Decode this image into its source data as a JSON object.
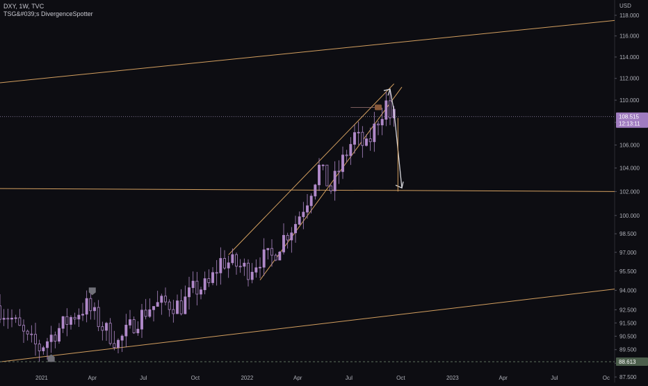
{
  "header": {
    "symbol_line": "DXY, 1W, TVC",
    "indicator_line": "TSG&#039;s DivergenceSpotter"
  },
  "price_axis": {
    "currency": "USD",
    "current_price": "108.515",
    "countdown": "12:13:11",
    "marker_price": "88.613"
  },
  "colors": {
    "background": "#0d0d12",
    "candle": "#b089c9",
    "trendline": "#d4a060",
    "arrow": "#d8d8de",
    "current_tag": "#a07cc0",
    "marker_tag": "#4c5e4c",
    "bull_marker": "#8a5a3a",
    "divergence_marker": "#707078"
  },
  "chart_data": {
    "type": "candlestick",
    "title": "DXY, 1W, TVC",
    "ylabel": "USD",
    "y_scale": "log",
    "ylim": [
      87.1,
      119.5
    ],
    "y_ticks": [
      "118.000",
      "116.000",
      "114.000",
      "112.000",
      "110.000",
      "108.000",
      "106.000",
      "104.000",
      "102.000",
      "100.000",
      "98.500",
      "97.000",
      "95.500",
      "94.000",
      "92.500",
      "91.500",
      "90.500",
      "89.500",
      "88.500",
      "87.500"
    ],
    "x_ticks": [
      "2021",
      "Apr",
      "Jul",
      "Oct",
      "2022",
      "Apr",
      "Jul",
      "Oct",
      "2023",
      "Apr",
      "Jul",
      "Oc"
    ],
    "x_tick_dates": [
      "2021-01-01",
      "2021-04-01",
      "2021-07-01",
      "2021-10-01",
      "2022-01-01",
      "2022-04-01",
      "2022-07-01",
      "2022-10-01",
      "2023-01-01",
      "2023-04-01",
      "2023-07-01",
      "2023-10-01"
    ],
    "xlim": [
      "2020-10-19",
      "2023-10-16"
    ],
    "current_price": 108.515,
    "price_line_marker": 88.613,
    "price_path": [
      [
        "2020-10-19",
        92.8
      ],
      [
        "2020-11-16",
        91.8
      ],
      [
        "2020-12-14",
        90.2
      ],
      [
        "2021-01-04",
        89.6
      ],
      [
        "2021-02-01",
        90.8
      ],
      [
        "2021-03-01",
        91.9
      ],
      [
        "2021-03-29",
        92.8
      ],
      [
        "2021-04-26",
        91.2
      ],
      [
        "2021-05-24",
        90.0
      ],
      [
        "2021-06-21",
        91.5
      ],
      [
        "2021-07-19",
        92.7
      ],
      [
        "2021-08-16",
        93.0
      ],
      [
        "2021-09-13",
        92.8
      ],
      [
        "2021-10-04",
        94.0
      ],
      [
        "2021-11-01",
        94.4
      ],
      [
        "2021-11-22",
        96.3
      ],
      [
        "2021-12-13",
        96.1
      ],
      [
        "2022-01-10",
        95.6
      ],
      [
        "2022-01-31",
        96.5
      ],
      [
        "2022-02-21",
        96.6
      ],
      [
        "2022-03-14",
        98.2
      ],
      [
        "2022-04-04",
        99.4
      ],
      [
        "2022-04-25",
        101.4
      ],
      [
        "2022-05-16",
        104.0
      ],
      [
        "2022-06-06",
        102.2
      ],
      [
        "2022-06-27",
        104.6
      ],
      [
        "2022-07-18",
        106.8
      ],
      [
        "2022-08-08",
        105.7
      ],
      [
        "2022-08-29",
        108.3
      ],
      [
        "2022-09-12",
        109.7
      ],
      [
        "2022-09-19",
        108.5
      ]
    ],
    "price_range_width": 0.021,
    "trendlines": [
      {
        "from": [
          "2020-10-19",
          111.6
        ],
        "to": [
          "2023-10-16",
          117.5
        ]
      },
      {
        "from": [
          "2020-10-19",
          102.25
        ],
        "to": [
          "2023-10-16",
          102.0
        ]
      },
      {
        "from": [
          "2020-10-19",
          88.6
        ],
        "to": [
          "2023-10-16",
          94.1
        ]
      },
      {
        "from": [
          "2021-11-29",
          96.8
        ],
        "to": [
          "2022-09-19",
          111.5
        ]
      },
      {
        "from": [
          "2022-01-24",
          94.8
        ],
        "to": [
          "2022-10-03",
          111.2
        ]
      }
    ],
    "projection": {
      "points": [
        [
          "2022-09-12",
          111.0
        ],
        [
          "2022-09-19",
          109.0
        ],
        [
          "2022-10-03",
          102.3
        ]
      ],
      "from": [
        "2022-09-26",
        108.4
      ],
      "to": [
        "2022-09-26",
        102.0
      ]
    }
  }
}
